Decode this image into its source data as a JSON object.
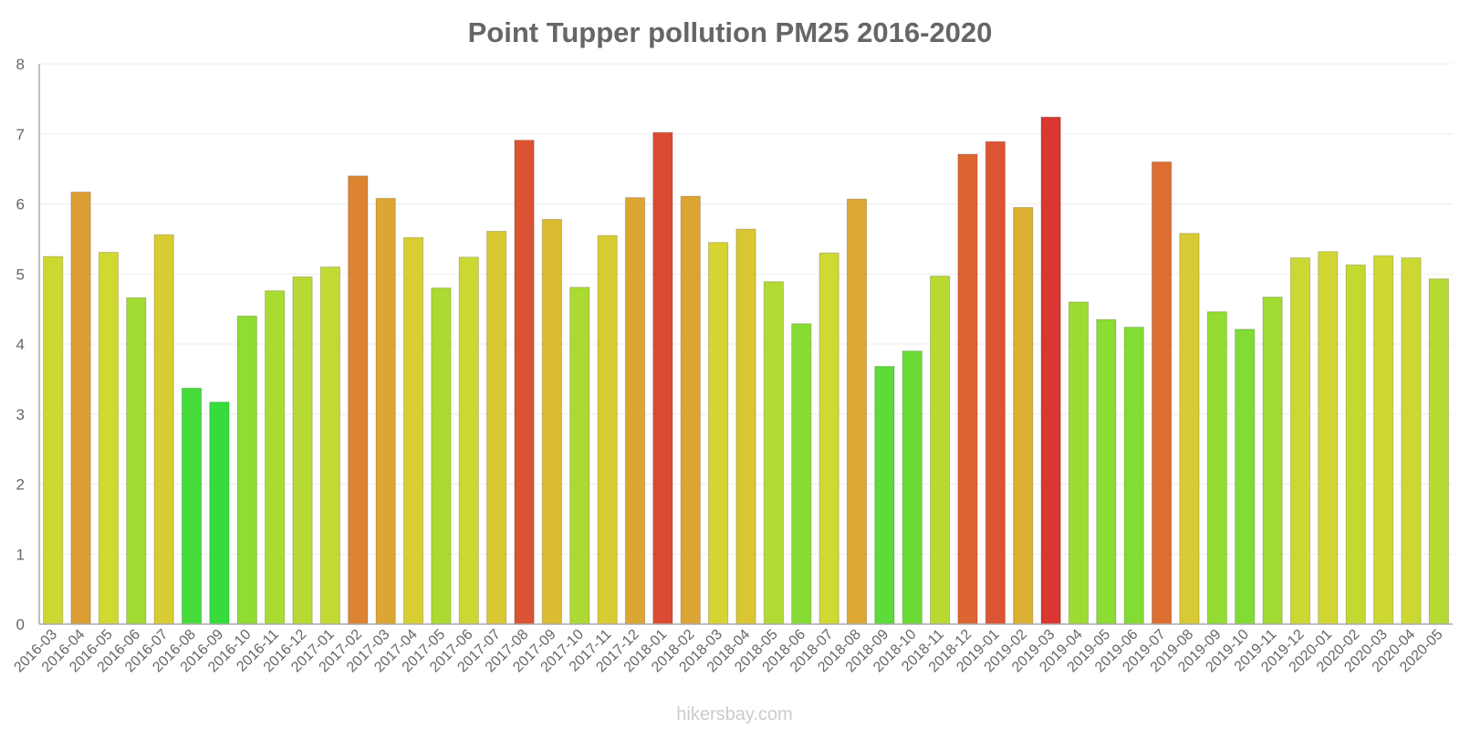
{
  "chart_data": {
    "type": "bar",
    "title": "Point Tupper pollution PM25 2016-2020",
    "xlabel": "",
    "ylabel": "",
    "ylim": [
      0,
      8
    ],
    "yticks": [
      "0",
      "1",
      "2",
      "3",
      "4",
      "5",
      "6",
      "7",
      "8"
    ],
    "grid": true,
    "categories": [
      "2016-03",
      "2016-04",
      "2016-05",
      "2016-06",
      "2016-07",
      "2016-08",
      "2016-09",
      "2016-10",
      "2016-11",
      "2016-12",
      "2017-01",
      "2017-02",
      "2017-03",
      "2017-04",
      "2017-05",
      "2017-06",
      "2017-07",
      "2017-08",
      "2017-09",
      "2017-10",
      "2017-11",
      "2017-12",
      "2018-01",
      "2018-02",
      "2018-03",
      "2018-04",
      "2018-05",
      "2018-06",
      "2018-07",
      "2018-08",
      "2018-09",
      "2018-10",
      "2018-11",
      "2018-12",
      "2019-01",
      "2019-02",
      "2019-03",
      "2019-04",
      "2019-05",
      "2019-06",
      "2019-07",
      "2019-08",
      "2019-09",
      "2019-10",
      "2019-11",
      "2019-12",
      "2020-01",
      "2020-02",
      "2020-03",
      "2020-04",
      "2020-05"
    ],
    "values": [
      5.25,
      6.17,
      5.31,
      4.66,
      5.56,
      3.37,
      3.17,
      4.4,
      4.76,
      4.96,
      5.1,
      6.4,
      6.08,
      5.52,
      4.8,
      5.24,
      5.61,
      6.91,
      5.78,
      4.81,
      5.55,
      6.09,
      7.02,
      6.11,
      5.45,
      5.64,
      4.89,
      4.29,
      5.3,
      6.07,
      3.68,
      3.9,
      4.97,
      6.71,
      6.89,
      5.95,
      7.24,
      4.6,
      4.35,
      4.24,
      6.6,
      5.58,
      4.46,
      4.21,
      4.67,
      5.23,
      5.32,
      5.13,
      5.26,
      5.23,
      4.93
    ]
  },
  "watermark": "hikersbay.com"
}
